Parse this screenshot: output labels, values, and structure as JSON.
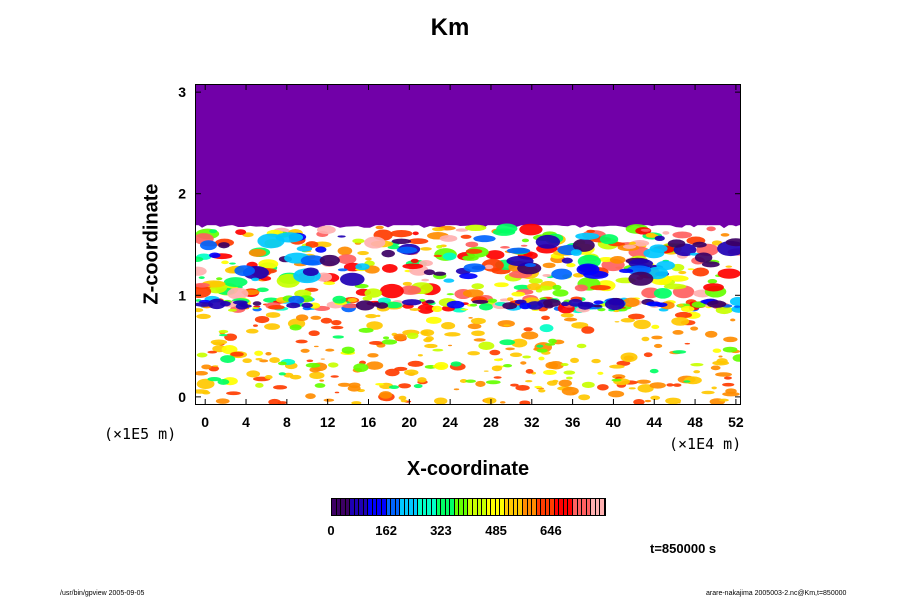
{
  "chart_data": {
    "type": "heatmap",
    "title": "Km",
    "xlabel": "X-coordinate",
    "ylabel": "Z-coordinate",
    "x_scale_label": "(×1E4 m)",
    "y_scale_label": "(×1E5 m)",
    "x_ticks": [
      "0",
      "4",
      "8",
      "12",
      "16",
      "20",
      "24",
      "28",
      "32",
      "36",
      "40",
      "44",
      "48",
      "52"
    ],
    "y_ticks": [
      "0",
      "1",
      "2",
      "3"
    ],
    "xlim": [
      -1,
      52.5
    ],
    "ylim": [
      -0.08,
      3.08
    ],
    "colorbar_ticks": [
      "0",
      "162",
      "323",
      "485",
      "646"
    ],
    "colorbar_range": [
      0,
      808
    ],
    "time_label": "t=850000 s",
    "colors": {
      "upper_layer": "#7100a8",
      "low_values": "#ffffff",
      "colormap": [
        "#3c0064",
        "#1e00b4",
        "#0000ff",
        "#0064ff",
        "#00c8ff",
        "#00ffc8",
        "#00ff64",
        "#64ff00",
        "#c8ff00",
        "#ffff00",
        "#ffc800",
        "#ff8c00",
        "#ff3c00",
        "#ff0000",
        "#ff6060",
        "#ffb0b0"
      ]
    },
    "regions": [
      {
        "description": "uniform layer",
        "z_range": [
          1.7,
          3.08
        ],
        "value": 0
      },
      {
        "description": "turbulent band",
        "z_range": [
          1.0,
          1.7
        ],
        "value_range": [
          0,
          808
        ]
      },
      {
        "description": "inversion band",
        "z_range": [
          0.85,
          1.0
        ],
        "value_range": [
          0,
          808
        ]
      },
      {
        "description": "convective layer",
        "z_range": [
          -0.08,
          0.85
        ],
        "value_range": [
          0,
          650
        ]
      }
    ]
  },
  "footer": {
    "left": "/usr/bin/gpview 2005-09-05",
    "right": "arare-nakajima 2005003-2.nc@Km,t=850000"
  }
}
